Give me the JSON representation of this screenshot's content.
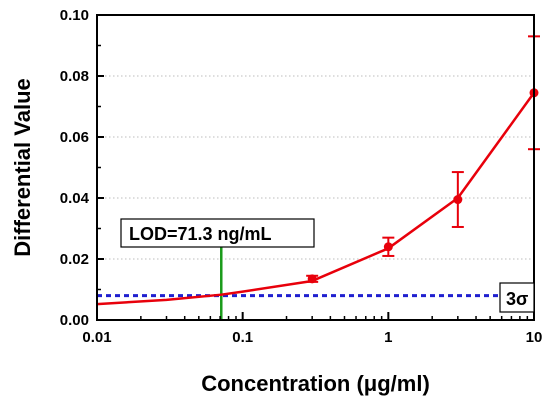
{
  "chart_data": {
    "type": "scatter",
    "xlabel": "Concentration (μg/ml)",
    "ylabel": "Differential Value",
    "xscale": "log",
    "xlim": [
      0.01,
      10
    ],
    "ylim": [
      0,
      0.1
    ],
    "xticks": [
      0.01,
      0.1,
      1,
      10
    ],
    "xtick_labels": [
      "0.01",
      "0.1",
      "1",
      "10"
    ],
    "yticks": [
      0.0,
      0.02,
      0.04,
      0.06,
      0.08,
      0.1
    ],
    "ytick_labels": [
      "0.00",
      "0.02",
      "0.04",
      "0.06",
      "0.08",
      "0.10"
    ],
    "grid": "horizontal dotted",
    "series": [
      {
        "type": "scatter-errorbar",
        "color": "#e8000b",
        "x": [
          0.3,
          1,
          3,
          10
        ],
        "y": [
          0.0135,
          0.024,
          0.0395,
          0.0745
        ],
        "yerr": [
          0.001,
          0.003,
          0.009,
          0.0185
        ]
      },
      {
        "type": "fit-line",
        "color": "#e8000b",
        "x": [
          0.01,
          0.03,
          0.0713,
          0.1,
          0.3,
          1,
          3,
          10
        ],
        "y": [
          0.0052,
          0.0066,
          0.0083,
          0.0093,
          0.0128,
          0.0235,
          0.04,
          0.0745
        ]
      }
    ],
    "reference_lines": [
      {
        "kind": "horizontal",
        "style": "dashed",
        "color": "#1f1fcf",
        "y": 0.008
      },
      {
        "kind": "vertical",
        "color": "#1a9b1a",
        "x": 0.0713,
        "y_from": 0.0,
        "y_to": 0.0245
      }
    ],
    "annotations": {
      "lod_label": "LOD=71.3 ng/mL",
      "sigma_label": "3σ"
    }
  }
}
